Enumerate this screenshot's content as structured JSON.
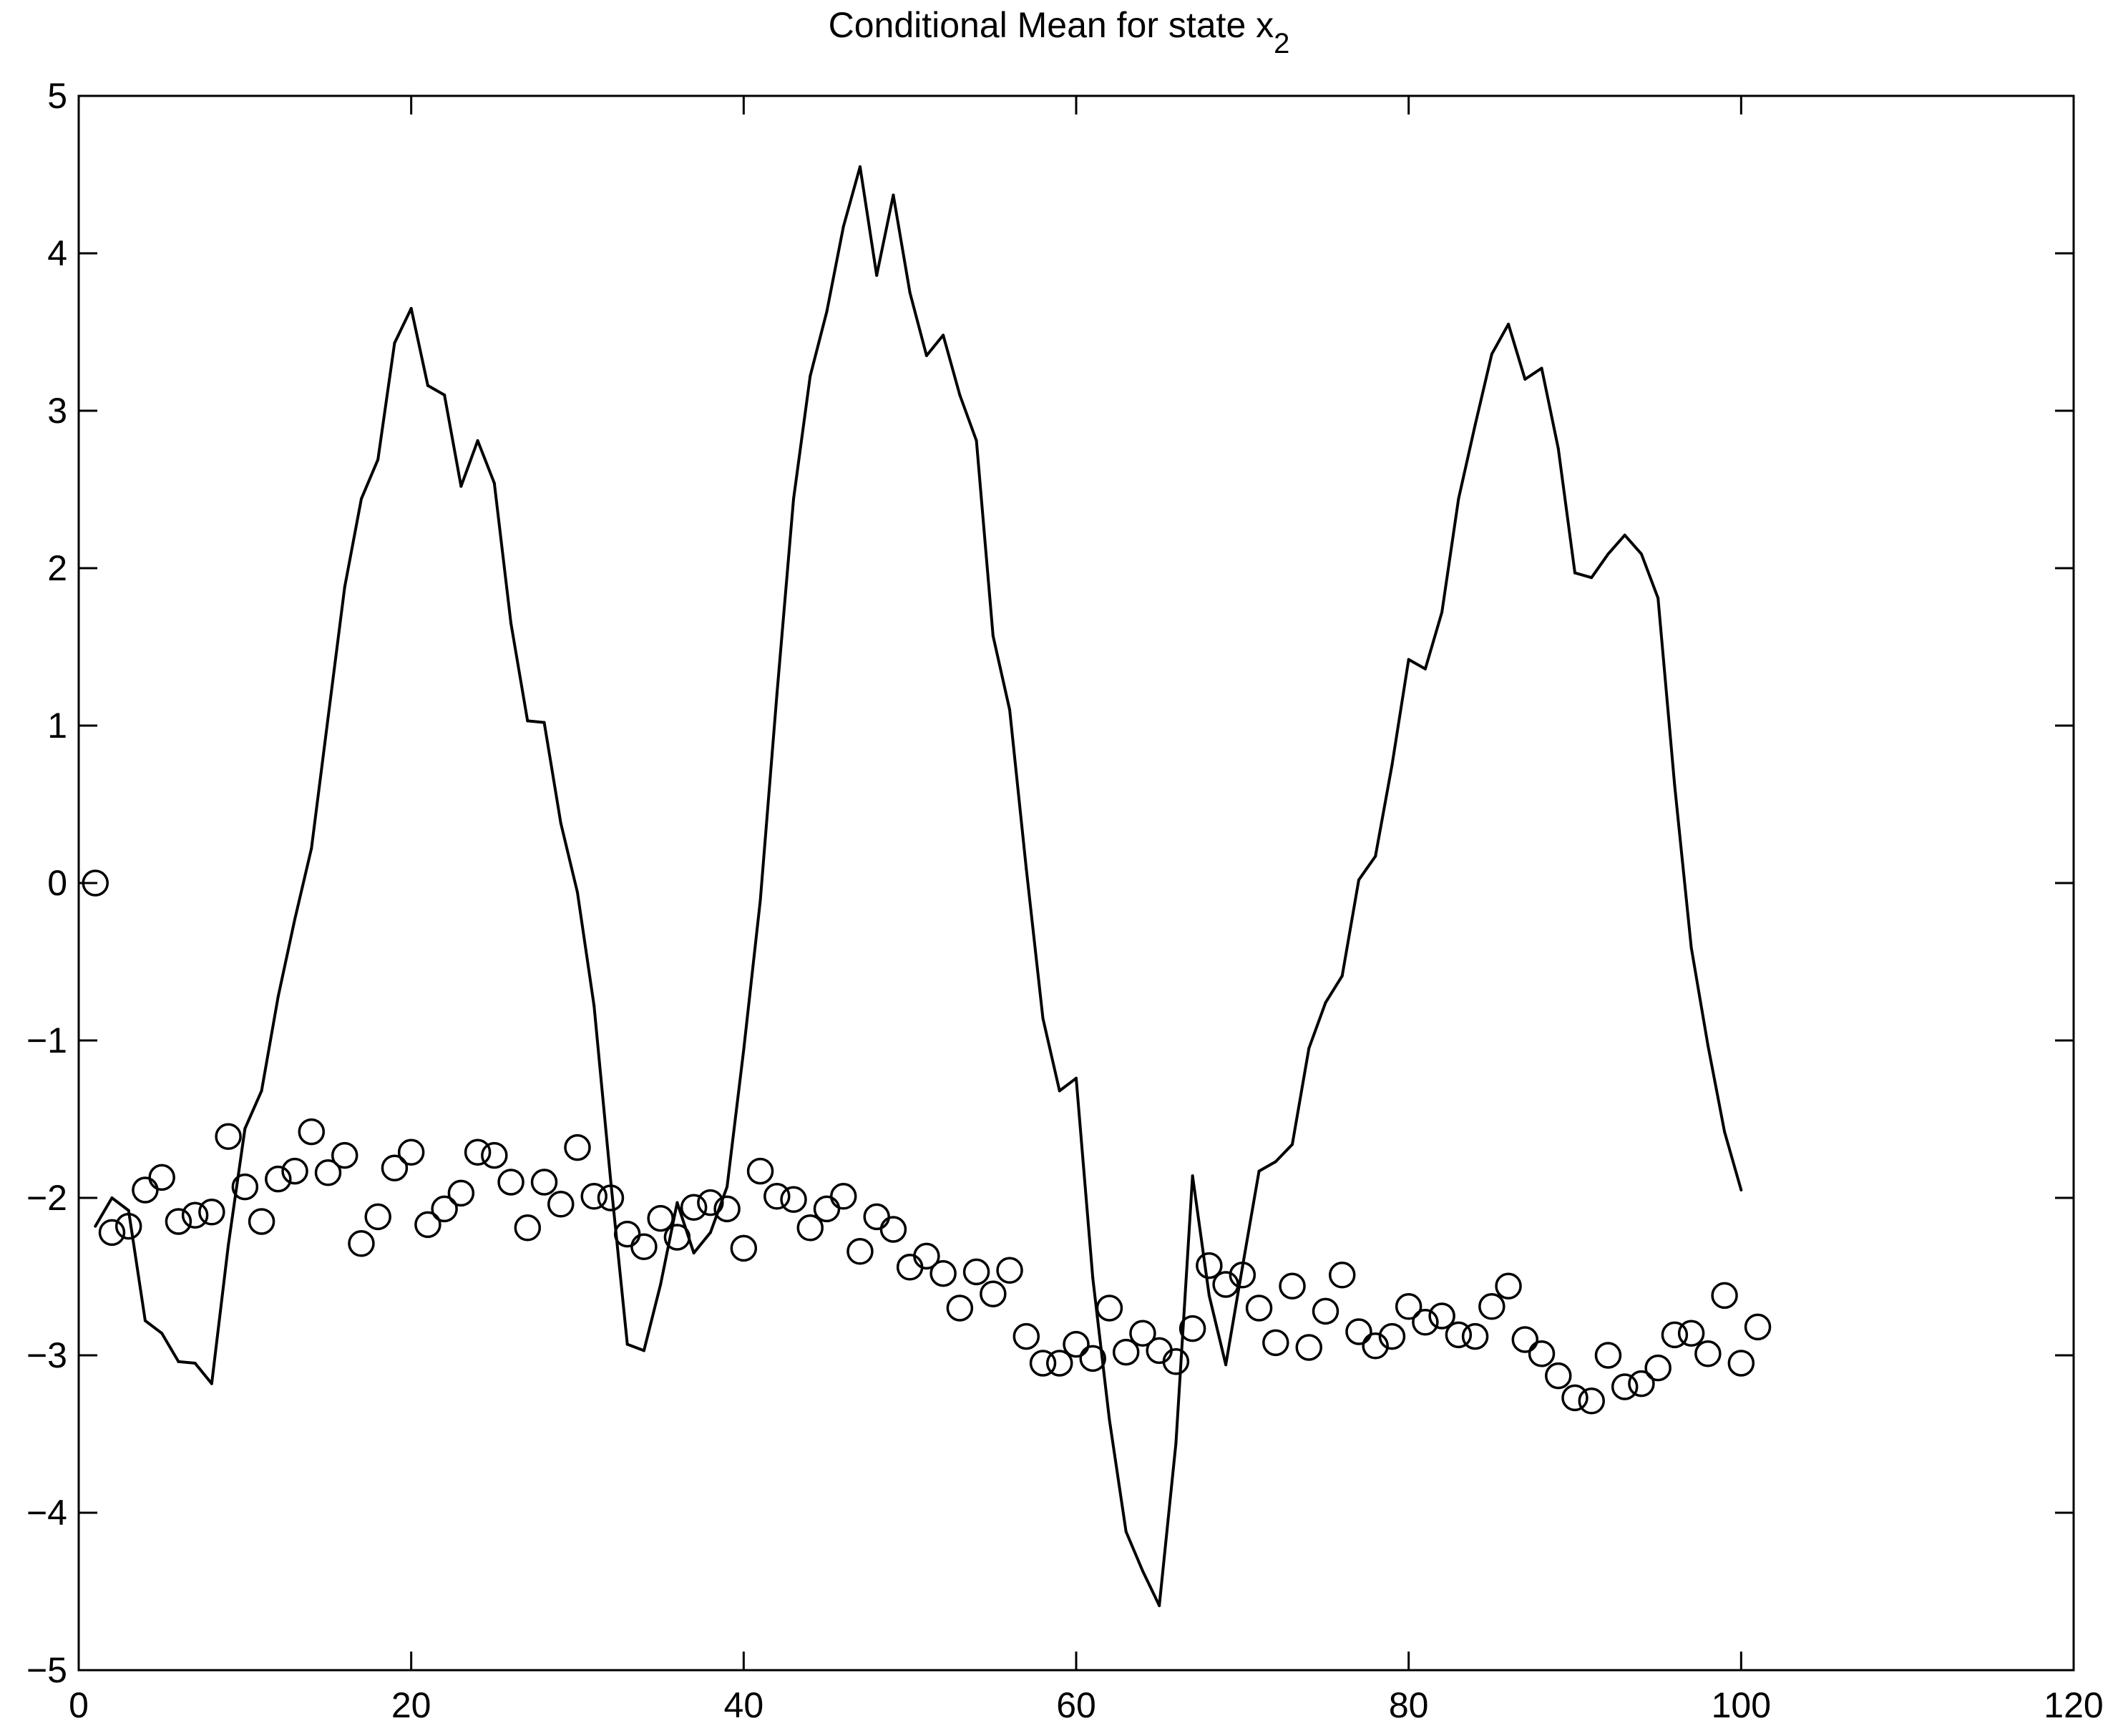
{
  "chart_data": {
    "type": "line",
    "title_main": "Conditional Mean  for state x",
    "title_subscript": "2",
    "xlabel": "",
    "ylabel": "",
    "xlim": [
      0,
      120
    ],
    "ylim": [
      -5,
      5
    ],
    "x_ticks": [
      0,
      20,
      40,
      60,
      80,
      100,
      120
    ],
    "y_ticks": [
      -5,
      -4,
      -3,
      -2,
      -1,
      0,
      1,
      2,
      3,
      4,
      5
    ],
    "x_tick_labels": [
      "0",
      "20",
      "40",
      "60",
      "80",
      "100",
      "120"
    ],
    "y_tick_labels": [
      "−5",
      "−4",
      "−3",
      "−2",
      "−1",
      "0",
      "1",
      "2",
      "3",
      "4",
      "5"
    ],
    "grid": false,
    "color": "#000000",
    "series": [
      {
        "style": "line",
        "x": [
          1,
          2,
          3,
          4,
          5,
          6,
          7,
          8,
          9,
          10,
          11,
          12,
          13,
          14,
          15,
          16,
          17,
          18,
          19,
          20,
          21,
          22,
          23,
          24,
          25,
          26,
          27,
          28,
          29,
          30,
          31,
          32,
          33,
          34,
          35,
          36,
          37,
          38,
          39,
          40,
          41,
          42,
          43,
          44,
          45,
          46,
          47,
          48,
          49,
          50,
          51,
          52,
          53,
          54,
          55,
          56,
          57,
          58,
          59,
          60,
          61,
          62,
          63,
          64,
          65,
          66,
          67,
          68,
          69,
          70,
          71,
          72,
          73,
          74,
          75,
          76,
          77,
          78,
          79,
          80,
          81,
          82,
          83,
          84,
          85,
          86,
          87,
          88,
          89,
          90,
          91,
          92,
          93,
          94,
          95,
          96,
          97,
          98,
          99,
          100
        ],
        "y": [
          -2.18,
          -2.0,
          -2.08,
          -2.78,
          -2.86,
          -3.04,
          -3.05,
          -3.18,
          -2.3,
          -1.56,
          -1.32,
          -0.72,
          -0.23,
          0.22,
          1.05,
          1.88,
          2.44,
          2.69,
          3.43,
          3.65,
          3.16,
          3.1,
          2.52,
          2.81,
          2.54,
          1.65,
          1.03,
          1.02,
          0.38,
          -0.06,
          -0.78,
          -1.89,
          -2.93,
          -2.97,
          -2.55,
          -2.03,
          -2.35,
          -2.22,
          -1.93,
          -1.06,
          -0.11,
          1.2,
          2.44,
          3.22,
          3.63,
          4.17,
          4.55,
          3.86,
          4.37,
          3.75,
          3.35,
          3.48,
          3.1,
          2.81,
          1.57,
          1.1,
          0.09,
          -0.86,
          -1.32,
          -1.24,
          -2.51,
          -3.41,
          -4.12,
          -4.37,
          -4.59,
          -3.56,
          -1.86,
          -2.62,
          -3.06,
          -2.44,
          -1.83,
          -1.77,
          -1.66,
          -1.05,
          -0.76,
          -0.59,
          0.02,
          0.17,
          0.75,
          1.42,
          1.36,
          1.72,
          2.44,
          2.91,
          3.36,
          3.55,
          3.2,
          3.27,
          2.76,
          1.97,
          1.94,
          2.09,
          2.21,
          2.09,
          1.81,
          0.62,
          -0.41,
          -1.03,
          -1.58,
          -1.95
        ]
      },
      {
        "style": "markers",
        "marker": "open-circle",
        "x": [
          1,
          2,
          3,
          4,
          5,
          6,
          7,
          8,
          9,
          10,
          11,
          12,
          13,
          14,
          15,
          16,
          17,
          18,
          19,
          20,
          21,
          22,
          23,
          24,
          25,
          26,
          27,
          28,
          29,
          30,
          31,
          32,
          33,
          34,
          35,
          36,
          37,
          38,
          39,
          40,
          41,
          42,
          43,
          44,
          45,
          46,
          47,
          48,
          49,
          50,
          51,
          52,
          53,
          54,
          55,
          56,
          57,
          58,
          59,
          60,
          61,
          62,
          63,
          64,
          65,
          66,
          67,
          68,
          69,
          70,
          71,
          72,
          73,
          74,
          75,
          76,
          77,
          78,
          79,
          80,
          81,
          82,
          83,
          84,
          85,
          86,
          87,
          88,
          89,
          90,
          91,
          92,
          93,
          94,
          95,
          96,
          97,
          98,
          99,
          100,
          101
        ],
        "y": [
          0.0,
          -2.22,
          -2.18,
          -1.95,
          -1.87,
          -2.15,
          -2.11,
          -2.09,
          -1.61,
          -1.93,
          -2.15,
          -1.88,
          -1.83,
          -1.58,
          -1.84,
          -1.73,
          -2.29,
          -2.12,
          -1.81,
          -1.71,
          -2.17,
          -2.07,
          -1.97,
          -1.71,
          -1.73,
          -1.9,
          -2.19,
          -1.9,
          -2.04,
          -1.68,
          -1.99,
          -2.0,
          -2.23,
          -2.31,
          -2.13,
          -2.25,
          -2.06,
          -2.03,
          -2.07,
          -2.32,
          -1.83,
          -1.99,
          -2.01,
          -2.19,
          -2.07,
          -1.99,
          -2.34,
          -2.12,
          -2.2,
          -2.44,
          -2.37,
          -2.48,
          -2.7,
          -2.47,
          -2.61,
          -2.46,
          -2.88,
          -3.05,
          -3.05,
          -2.93,
          -3.02,
          -2.7,
          -2.98,
          -2.86,
          -2.97,
          -3.04,
          -2.83,
          -2.43,
          -2.55,
          -2.49,
          -2.7,
          -2.92,
          -2.56,
          -2.95,
          -2.72,
          -2.49,
          -2.85,
          -2.94,
          -2.88,
          -2.69,
          -2.79,
          -2.75,
          -2.87,
          -2.88,
          -2.69,
          -2.56,
          -2.9,
          -2.99,
          -3.13,
          -3.27,
          -3.29,
          -3.0,
          -3.2,
          -3.18,
          -3.08,
          -2.87,
          -2.86,
          -2.99,
          -2.62,
          -3.05,
          -2.82
        ]
      }
    ]
  }
}
